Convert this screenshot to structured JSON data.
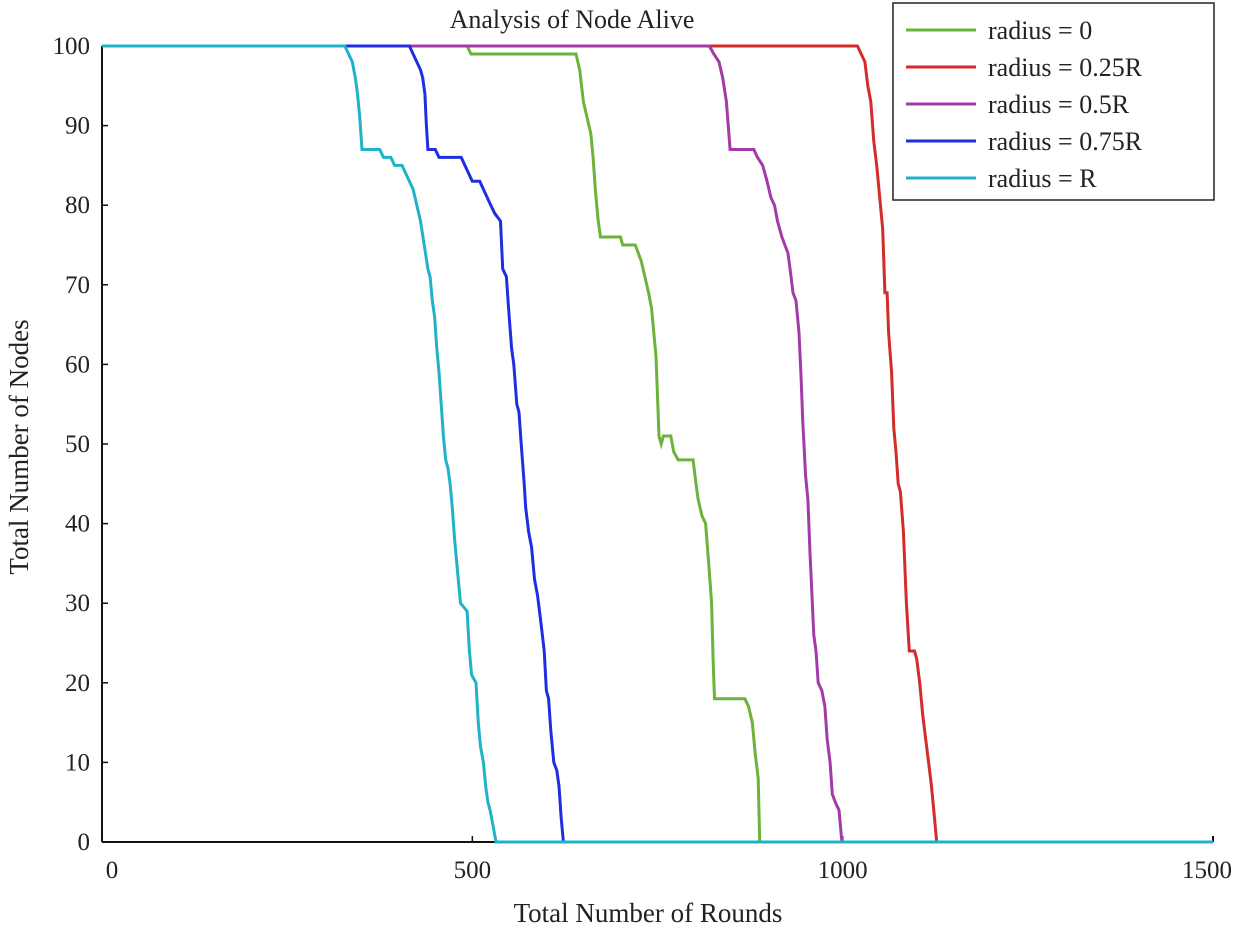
{
  "chart_data": {
    "type": "line",
    "title": "Analysis of Node Alive",
    "xlabel": "Total Number of Rounds",
    "ylabel": "Total Number of Nodes",
    "xlim": [
      0,
      1500
    ],
    "ylim": [
      0,
      100
    ],
    "xticks": [
      0,
      500,
      1000,
      1500
    ],
    "yticks": [
      0,
      10,
      20,
      30,
      40,
      50,
      60,
      70,
      80,
      90,
      100
    ],
    "grid": false,
    "legend_position": "top-right",
    "series": [
      {
        "name": "radius = 0",
        "color": "#6bb33a",
        "points": [
          [
            0,
            100
          ],
          [
            493,
            100
          ],
          [
            498,
            99
          ],
          [
            640,
            99
          ],
          [
            645,
            97
          ],
          [
            650,
            93
          ],
          [
            655,
            91
          ],
          [
            660,
            89
          ],
          [
            663,
            86
          ],
          [
            666,
            82
          ],
          [
            670,
            78
          ],
          [
            673,
            76
          ],
          [
            700,
            76
          ],
          [
            703,
            75
          ],
          [
            720,
            75
          ],
          [
            728,
            73
          ],
          [
            733,
            71
          ],
          [
            738,
            69
          ],
          [
            742,
            67
          ],
          [
            745,
            64
          ],
          [
            748,
            61
          ],
          [
            752,
            51
          ],
          [
            755,
            50
          ],
          [
            758,
            51
          ],
          [
            768,
            51
          ],
          [
            772,
            49
          ],
          [
            778,
            48
          ],
          [
            798,
            48
          ],
          [
            802,
            45
          ],
          [
            805,
            43
          ],
          [
            810,
            41
          ],
          [
            815,
            40
          ],
          [
            820,
            34
          ],
          [
            823,
            30
          ],
          [
            825,
            23
          ],
          [
            827,
            18
          ],
          [
            868,
            18
          ],
          [
            873,
            17
          ],
          [
            878,
            15
          ],
          [
            882,
            11
          ],
          [
            886,
            8
          ],
          [
            888,
            0
          ],
          [
            1500,
            0
          ]
        ]
      },
      {
        "name": "radius = 0.25R",
        "color": "#d42b2b",
        "points": [
          [
            0,
            100
          ],
          [
            1020,
            100
          ],
          [
            1025,
            99
          ],
          [
            1030,
            98
          ],
          [
            1034,
            95
          ],
          [
            1038,
            93
          ],
          [
            1042,
            88
          ],
          [
            1046,
            85
          ],
          [
            1050,
            81
          ],
          [
            1054,
            77
          ],
          [
            1057,
            69
          ],
          [
            1060,
            69
          ],
          [
            1062,
            64
          ],
          [
            1066,
            59
          ],
          [
            1069,
            52
          ],
          [
            1072,
            49
          ],
          [
            1075,
            45
          ],
          [
            1078,
            44
          ],
          [
            1082,
            39
          ],
          [
            1086,
            30
          ],
          [
            1090,
            24
          ],
          [
            1097,
            24
          ],
          [
            1100,
            23
          ],
          [
            1104,
            20
          ],
          [
            1108,
            16
          ],
          [
            1112,
            13
          ],
          [
            1116,
            10
          ],
          [
            1120,
            7
          ],
          [
            1124,
            3
          ],
          [
            1127,
            0
          ],
          [
            1500,
            0
          ]
        ]
      },
      {
        "name": "radius = 0.5R",
        "color": "#a23ba8",
        "points": [
          [
            0,
            100
          ],
          [
            820,
            100
          ],
          [
            826,
            99
          ],
          [
            833,
            98
          ],
          [
            838,
            96
          ],
          [
            843,
            93
          ],
          [
            848,
            87
          ],
          [
            880,
            87
          ],
          [
            885,
            86
          ],
          [
            892,
            85
          ],
          [
            898,
            83
          ],
          [
            903,
            81
          ],
          [
            908,
            80
          ],
          [
            912,
            78
          ],
          [
            918,
            76
          ],
          [
            922,
            75
          ],
          [
            926,
            74
          ],
          [
            929,
            72
          ],
          [
            933,
            69
          ],
          [
            937,
            68
          ],
          [
            941,
            64
          ],
          [
            944,
            58
          ],
          [
            946,
            53
          ],
          [
            950,
            46
          ],
          [
            953,
            43
          ],
          [
            956,
            36
          ],
          [
            958,
            32
          ],
          [
            961,
            26
          ],
          [
            964,
            24
          ],
          [
            967,
            20
          ],
          [
            972,
            19
          ],
          [
            976,
            17
          ],
          [
            979,
            13
          ],
          [
            983,
            10
          ],
          [
            986,
            6
          ],
          [
            990,
            5
          ],
          [
            995,
            4
          ],
          [
            999,
            0
          ],
          [
            1500,
            0
          ]
        ]
      },
      {
        "name": "radius = 0.75R",
        "color": "#1e2ee0",
        "points": [
          [
            0,
            100
          ],
          [
            415,
            100
          ],
          [
            420,
            99
          ],
          [
            425,
            98
          ],
          [
            430,
            97
          ],
          [
            433,
            96
          ],
          [
            436,
            94
          ],
          [
            438,
            90
          ],
          [
            440,
            87
          ],
          [
            450,
            87
          ],
          [
            455,
            86
          ],
          [
            485,
            86
          ],
          [
            490,
            85
          ],
          [
            495,
            84
          ],
          [
            500,
            83
          ],
          [
            510,
            83
          ],
          [
            515,
            82
          ],
          [
            520,
            81
          ],
          [
            525,
            80
          ],
          [
            530,
            79
          ],
          [
            538,
            78
          ],
          [
            541,
            72
          ],
          [
            546,
            71
          ],
          [
            549,
            67
          ],
          [
            553,
            62
          ],
          [
            556,
            60
          ],
          [
            560,
            55
          ],
          [
            563,
            54
          ],
          [
            566,
            50
          ],
          [
            570,
            45
          ],
          [
            572,
            42
          ],
          [
            576,
            39
          ],
          [
            580,
            37
          ],
          [
            584,
            33
          ],
          [
            588,
            31
          ],
          [
            592,
            28
          ],
          [
            597,
            24
          ],
          [
            600,
            19
          ],
          [
            603,
            18
          ],
          [
            606,
            14
          ],
          [
            610,
            10
          ],
          [
            614,
            9
          ],
          [
            617,
            7
          ],
          [
            620,
            3
          ],
          [
            623,
            0
          ],
          [
            1500,
            0
          ]
        ]
      },
      {
        "name": "radius = R",
        "color": "#20b2c8",
        "points": [
          [
            0,
            100
          ],
          [
            328,
            100
          ],
          [
            333,
            99
          ],
          [
            338,
            98
          ],
          [
            342,
            96
          ],
          [
            345,
            94
          ],
          [
            348,
            91
          ],
          [
            351,
            87
          ],
          [
            375,
            87
          ],
          [
            380,
            86
          ],
          [
            390,
            86
          ],
          [
            395,
            85
          ],
          [
            405,
            85
          ],
          [
            410,
            84
          ],
          [
            415,
            83
          ],
          [
            420,
            82
          ],
          [
            425,
            80
          ],
          [
            430,
            78
          ],
          [
            435,
            75
          ],
          [
            440,
            72
          ],
          [
            443,
            71
          ],
          [
            446,
            68
          ],
          [
            449,
            66
          ],
          [
            452,
            62
          ],
          [
            455,
            59
          ],
          [
            458,
            55
          ],
          [
            461,
            51
          ],
          [
            464,
            48
          ],
          [
            467,
            47
          ],
          [
            470,
            45
          ],
          [
            473,
            42
          ],
          [
            476,
            38
          ],
          [
            479,
            35
          ],
          [
            484,
            30
          ],
          [
            493,
            29
          ],
          [
            496,
            24
          ],
          [
            499,
            21
          ],
          [
            505,
            20
          ],
          [
            508,
            15
          ],
          [
            511,
            12
          ],
          [
            515,
            10
          ],
          [
            518,
            7
          ],
          [
            521,
            5
          ],
          [
            524,
            4
          ],
          [
            528,
            2
          ],
          [
            532,
            0
          ],
          [
            1500,
            0
          ]
        ]
      }
    ],
    "baseline_color": "#111111"
  }
}
